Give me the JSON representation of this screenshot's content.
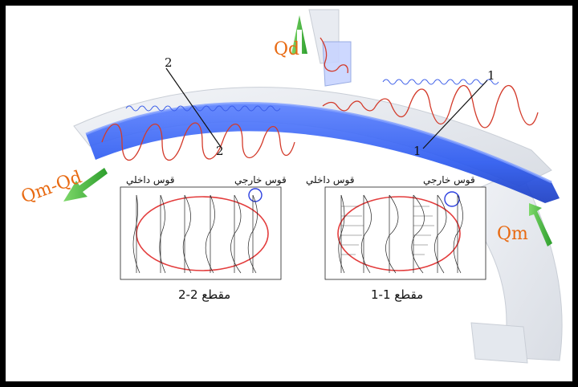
{
  "flows": {
    "qd": "Qd",
    "qm_qd": "Qm-Qd",
    "qm": "Qm"
  },
  "sections": {
    "s1": "1",
    "s2": "2",
    "section_2_title": "مقطع 2-2",
    "section_1_title": "مقطع 1-1"
  },
  "arcs": {
    "outer": "قوس خارجي",
    "inner": "قوس داخلي"
  },
  "colors": {
    "flow_label": "#e86a12",
    "flow_arrow": "#3cb43c",
    "water": "#2d5bf0",
    "helix": "#d33a2a",
    "highlight_ellipse": "#e33c3c",
    "vortex_circle": "#2c40e0"
  },
  "icons": [
    "up-arrow-icon",
    "down-left-arrow-icon"
  ]
}
